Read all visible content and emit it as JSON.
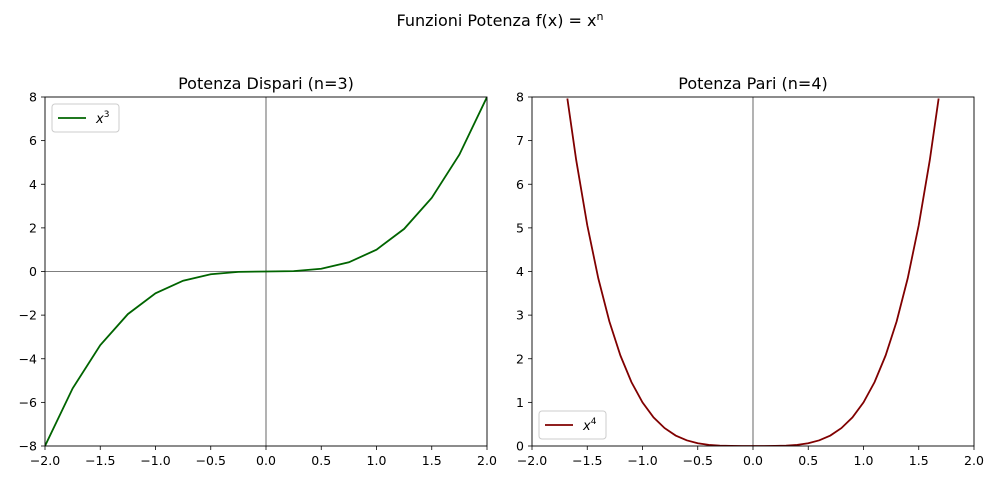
{
  "figure": {
    "suptitle": "Funzioni Potenza f(x) = x",
    "suptitle_superscript": "n"
  },
  "chart_data": [
    {
      "type": "line",
      "title": "Potenza Dispari (n=3)",
      "xlabel": "",
      "ylabel": "",
      "xlim": [
        -2.0,
        2.0
      ],
      "ylim": [
        -8,
        8
      ],
      "xticks": [
        -2.0,
        -1.5,
        -1.0,
        -0.5,
        0.0,
        0.5,
        1.0,
        1.5,
        2.0
      ],
      "xtick_labels": [
        "−2.0",
        "−1.5",
        "−1.0",
        "−0.5",
        "0.0",
        "0.5",
        "1.0",
        "1.5",
        "2.0"
      ],
      "yticks": [
        -8,
        -6,
        -4,
        -2,
        0,
        2,
        4,
        6,
        8
      ],
      "ytick_labels": [
        "−8",
        "−6",
        "−4",
        "−2",
        "0",
        "2",
        "4",
        "6",
        "8"
      ],
      "reference_lines": {
        "x": 0,
        "y": 0
      },
      "legend": {
        "position": "upper left",
        "entries": [
          {
            "base": "x",
            "sup": "3"
          }
        ]
      },
      "grid": false,
      "series": [
        {
          "color": "#006400",
          "x": [
            -2.0,
            -1.75,
            -1.5,
            -1.25,
            -1.0,
            -0.75,
            -0.5,
            -0.25,
            0.0,
            0.25,
            0.5,
            0.75,
            1.0,
            1.25,
            1.5,
            1.75,
            2.0
          ],
          "y": [
            -8.0,
            -5.36,
            -3.375,
            -1.953,
            -1.0,
            -0.422,
            -0.125,
            -0.016,
            0.0,
            0.016,
            0.125,
            0.422,
            1.0,
            1.953,
            3.375,
            5.36,
            8.0
          ]
        }
      ]
    },
    {
      "type": "line",
      "title": "Potenza Pari (n=4)",
      "xlabel": "",
      "ylabel": "",
      "xlim": [
        -2.0,
        2.0
      ],
      "ylim": [
        0,
        8
      ],
      "xticks": [
        -2.0,
        -1.5,
        -1.0,
        -0.5,
        0.0,
        0.5,
        1.0,
        1.5,
        2.0
      ],
      "xtick_labels": [
        "−2.0",
        "−1.5",
        "−1.0",
        "−0.5",
        "0.0",
        "0.5",
        "1.0",
        "1.5",
        "2.0"
      ],
      "yticks": [
        0,
        1,
        2,
        3,
        4,
        5,
        6,
        7,
        8
      ],
      "ytick_labels": [
        "0",
        "1",
        "2",
        "3",
        "4",
        "5",
        "6",
        "7",
        "8"
      ],
      "reference_lines": {
        "x": 0
      },
      "legend": {
        "position": "lower left",
        "entries": [
          {
            "base": "x",
            "sup": "4"
          }
        ]
      },
      "grid": false,
      "series": [
        {
          "color": "#800000",
          "x": [
            -1.68,
            -1.6,
            -1.5,
            -1.4,
            -1.3,
            -1.2,
            -1.1,
            -1.0,
            -0.9,
            -0.8,
            -0.7,
            -0.6,
            -0.5,
            -0.4,
            -0.3,
            -0.2,
            -0.1,
            0.0,
            0.1,
            0.2,
            0.3,
            0.4,
            0.5,
            0.6,
            0.7,
            0.8,
            0.9,
            1.0,
            1.1,
            1.2,
            1.3,
            1.4,
            1.5,
            1.6,
            1.68
          ],
          "y": [
            7.966,
            6.554,
            5.063,
            3.842,
            2.856,
            2.074,
            1.464,
            1.0,
            0.656,
            0.41,
            0.24,
            0.13,
            0.063,
            0.026,
            0.008,
            0.002,
            0.0,
            0.0,
            0.0,
            0.002,
            0.008,
            0.026,
            0.063,
            0.13,
            0.24,
            0.41,
            0.656,
            1.0,
            1.464,
            2.074,
            2.856,
            3.842,
            5.063,
            6.554,
            7.966
          ]
        }
      ]
    }
  ]
}
